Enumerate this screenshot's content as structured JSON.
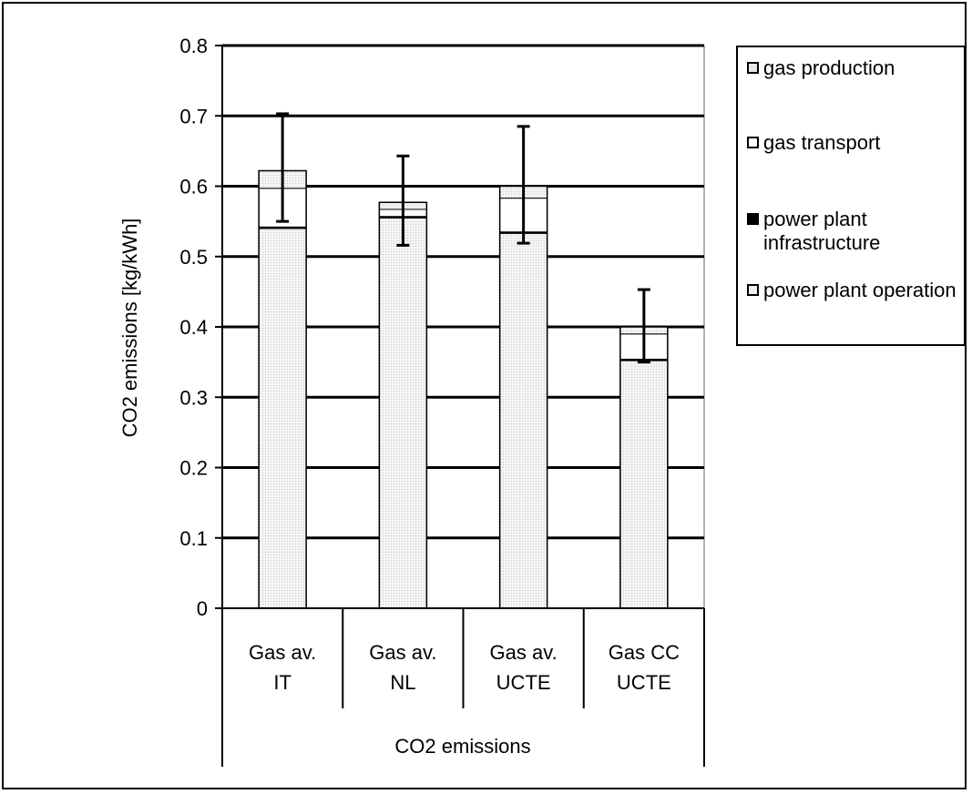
{
  "chart_data": {
    "type": "bar",
    "stacked": true,
    "ylabel": "CO2 emissions [kg/kWh]",
    "xlabel": "CO2 emissions",
    "ylim": [
      0,
      0.8
    ],
    "yticks": [
      "0",
      "0.1",
      "0.2",
      "0.3",
      "0.4",
      "0.5",
      "0.6",
      "0.7",
      "0.8"
    ],
    "ytick_values": [
      0,
      0.1,
      0.2,
      0.3,
      0.4,
      0.5,
      0.6,
      0.7,
      0.8
    ],
    "grid": true,
    "legend_position": "right",
    "categories": [
      [
        "Gas av.",
        "IT"
      ],
      [
        "Gas av.",
        "NL"
      ],
      [
        "Gas av.",
        "UCTE"
      ],
      [
        "Gas CC",
        "UCTE"
      ]
    ],
    "series": [
      {
        "name": "power plant operation",
        "color": "#efefef",
        "values": [
          0.54,
          0.555,
          0.533,
          0.352
        ]
      },
      {
        "name": "power plant infrastructure",
        "color": "#000000",
        "values": [
          0.002,
          0.002,
          0.002,
          0.002
        ]
      },
      {
        "name": "gas transport",
        "color": "#ffffff",
        "values": [
          0.055,
          0.01,
          0.048,
          0.036
        ]
      },
      {
        "name": "gas production",
        "color": "#e6e6e6",
        "values": [
          0.025,
          0.01,
          0.017,
          0.01
        ]
      }
    ],
    "totals": [
      0.622,
      0.577,
      0.6,
      0.4
    ],
    "error_bars": [
      {
        "low": 0.55,
        "high": 0.703
      },
      {
        "low": 0.516,
        "high": 0.643
      },
      {
        "low": 0.519,
        "high": 0.685
      },
      {
        "low": 0.35,
        "high": 0.453
      }
    ]
  },
  "legend": {
    "items": [
      {
        "label": "gas production",
        "color": "#e6e6e6"
      },
      {
        "label": "gas transport",
        "color": "#ffffff"
      },
      {
        "label": "power plant infrastructure",
        "color": "#000000"
      },
      {
        "label": "power plant operation",
        "color": "#efefef"
      }
    ]
  }
}
